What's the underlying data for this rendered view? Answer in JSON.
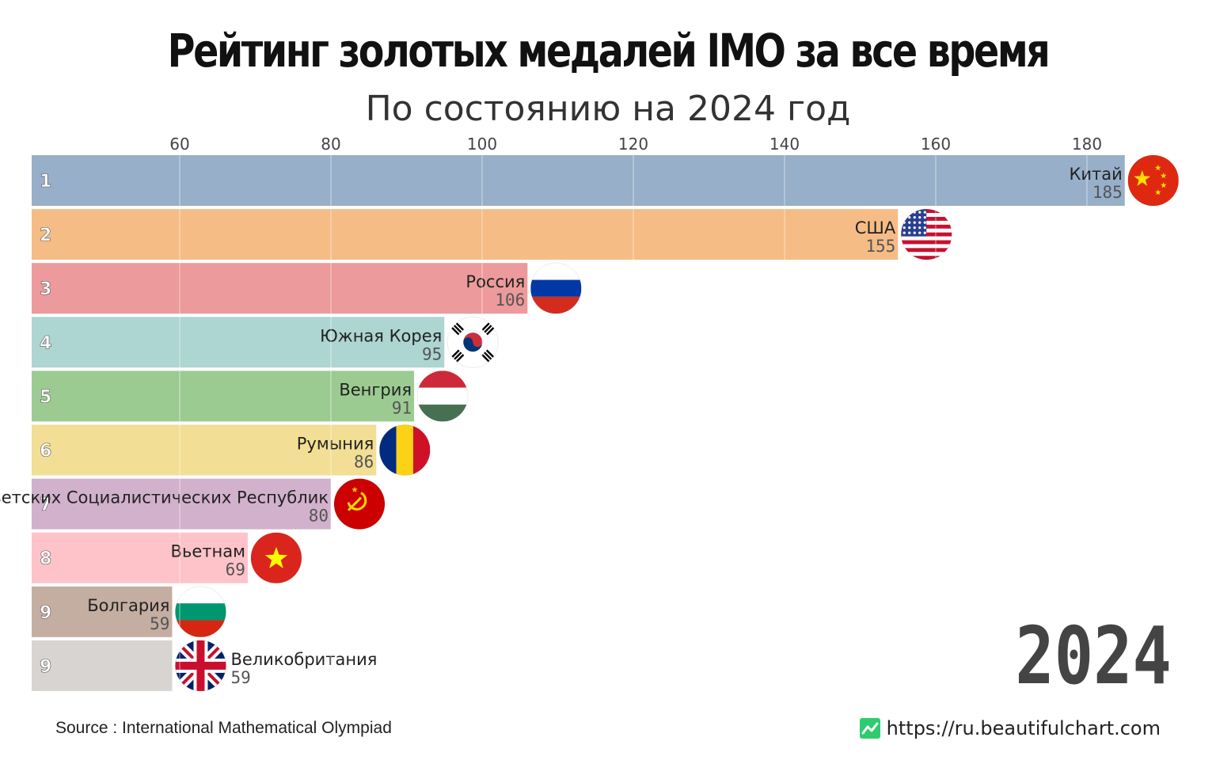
{
  "title": "Рейтинг золотых медалей IMO за все время",
  "subtitle": "По состоянию на 2024 год",
  "year": "2024",
  "source": "Source : International Mathematical Olympiad",
  "site_url": "https://ru.beautifulchart.com",
  "colors": {
    "logo": "#2ecc71",
    "grid": "#ffffff"
  },
  "chart_data": {
    "type": "bar",
    "orientation": "horizontal",
    "title": "Рейтинг золотых медалей IMO за все время",
    "subtitle": "По состоянию на 2024 год",
    "xlim": [
      40,
      190
    ],
    "x_ticks": [
      60,
      80,
      100,
      120,
      140,
      160,
      180
    ],
    "grid": true,
    "bars": [
      {
        "rank": "1",
        "name": "Китай",
        "value": 185,
        "color": "#97afc9",
        "flag": "china-flag"
      },
      {
        "rank": "2",
        "name": "США",
        "value": 155,
        "color": "#f6bc86",
        "flag": "usa-flag"
      },
      {
        "rank": "3",
        "name": "Россия",
        "value": 106,
        "color": "#ec9a9b",
        "flag": "russia-flag"
      },
      {
        "rank": "4",
        "name": "Южная Корея",
        "value": 95,
        "color": "#add5d2",
        "flag": "south-korea-flag"
      },
      {
        "rank": "5",
        "name": "Венгрия",
        "value": 91,
        "color": "#9ccb92",
        "flag": "hungary-flag"
      },
      {
        "rank": "6",
        "name": "Румыния",
        "value": 86,
        "color": "#f2de94",
        "flag": "romania-flag"
      },
      {
        "rank": "7",
        "name": "Союз Советских Социалистических Республик",
        "value": 80,
        "color": "#d1b1cb",
        "flag": "ussr-flag"
      },
      {
        "rank": "8",
        "name": "Вьетнам",
        "value": 69,
        "color": "#fec3c9",
        "flag": "vietnam-flag"
      },
      {
        "rank": "9",
        "name": "Болгария",
        "value": 59,
        "color": "#c4ada1",
        "flag": "bulgaria-flag"
      },
      {
        "rank": "9",
        "name": "Великобритания",
        "value": 59,
        "color": "#d8d4d2",
        "flag": "uk-flag"
      }
    ]
  }
}
